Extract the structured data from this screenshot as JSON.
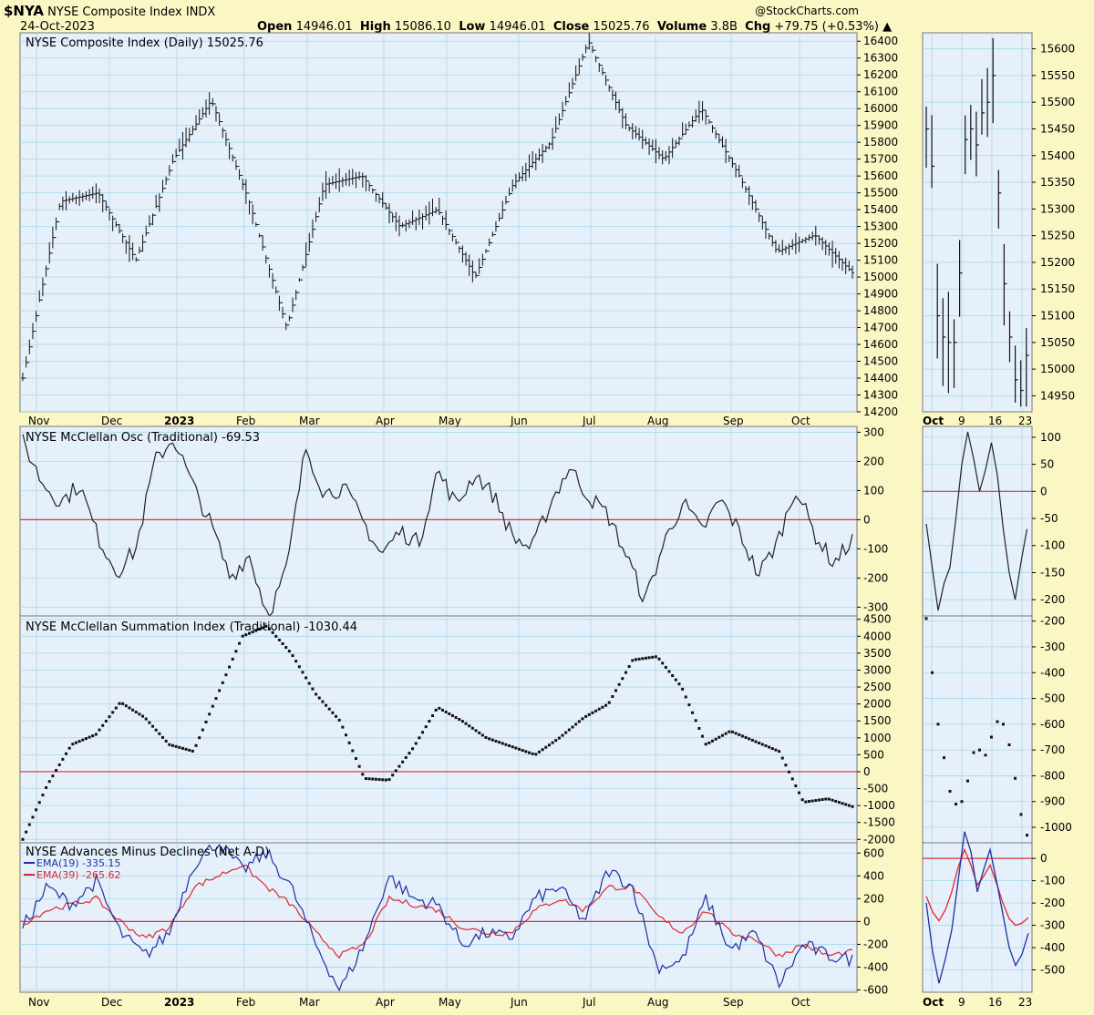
{
  "header": {
    "symbol": "$NYA",
    "name": "NYSE Composite Index INDX",
    "date": "24-Oct-2023",
    "credit": "@StockCharts.com",
    "open_label": "Open",
    "open": "14946.01",
    "high_label": "High",
    "high": "15086.10",
    "low_label": "Low",
    "low": "14946.01",
    "close_label": "Close",
    "close": "15025.76",
    "volume_label": "Volume",
    "volume": "3.8B",
    "chg_label": "Chg",
    "chg": "+79.75 (+0.53%)"
  },
  "colors": {
    "background": "#fbf7c4",
    "panel": "#e6f0fb",
    "grid": "#a9d8ea",
    "zero_line": "#d9303a",
    "ema19": "#1f2fa0",
    "ema39": "#e0282a"
  },
  "x_axis": {
    "main_labels": [
      "Nov",
      "Dec",
      "2023",
      "Feb",
      "Mar",
      "Apr",
      "May",
      "Jun",
      "Jul",
      "Aug",
      "Sep",
      "Oct"
    ],
    "side_labels": [
      "Oct",
      "9",
      "16",
      "23"
    ]
  },
  "chart_data": [
    {
      "type": "ohlc",
      "title": "NYSE Composite Index (Daily) 15025.76",
      "ylim": [
        14200,
        16450
      ],
      "yticks": [
        14200,
        14300,
        14400,
        14500,
        14600,
        14700,
        14800,
        14900,
        15000,
        15100,
        15200,
        15300,
        15400,
        15500,
        15600,
        15700,
        15800,
        15900,
        16000,
        16100,
        16200,
        16300,
        16400
      ],
      "anchors_x": [
        "Nov",
        "Dec",
        "Jan",
        "Feb",
        "Mar",
        "Apr",
        "May",
        "Jun",
        "Jul",
        "Aug",
        "Sep",
        "Oct",
        "Oct 24"
      ],
      "approx_close_path": [
        14400,
        15450,
        15500,
        15100,
        15700,
        16050,
        15450,
        14700,
        15550,
        15600,
        15300,
        15400,
        15000,
        15550,
        15800,
        16400,
        15900,
        15700,
        16000,
        15600,
        15150,
        15250,
        15025.76
      ],
      "side_ylim": [
        14920,
        15630
      ],
      "side_yticks": [
        14950,
        15000,
        15050,
        15100,
        15150,
        15200,
        15250,
        15300,
        15350,
        15400,
        15450,
        15500,
        15550,
        15600
      ]
    },
    {
      "type": "line",
      "title": "NYSE McClellan Osc (Traditional) -69.53",
      "ylim": [
        -330,
        320
      ],
      "yticks": [
        -300,
        -200,
        -100,
        0,
        100,
        200,
        300
      ],
      "approx_path": [
        270,
        130,
        60,
        120,
        -60,
        -180,
        -100,
        200,
        280,
        120,
        -20,
        -200,
        -120,
        -330,
        -170,
        250,
        90,
        110,
        0,
        -120,
        -40,
        -80,
        170,
        50,
        160,
        80,
        -60,
        -100,
        60,
        180,
        80,
        20,
        -120,
        -280,
        -80,
        60,
        -40,
        70,
        -40,
        -190,
        -80,
        110,
        -50,
        -150,
        -69.53
      ],
      "side_ylim": [
        -230,
        120
      ],
      "side_yticks": [
        -200,
        -150,
        -100,
        -50,
        0,
        50,
        100
      ]
    },
    {
      "type": "scatter",
      "title": "NYSE McClellan Summation Index (Traditional) -1030.44",
      "ylim": [
        -2100,
        4600
      ],
      "yticks": [
        -2000,
        -1500,
        -1000,
        -500,
        0,
        500,
        1000,
        1500,
        2000,
        2500,
        3000,
        3500,
        4000,
        4500
      ],
      "approx_path": [
        -2000,
        -400,
        800,
        1100,
        2050,
        1600,
        800,
        600,
        2300,
        4000,
        4300,
        3500,
        2300,
        1500,
        -200,
        -250,
        700,
        1900,
        1500,
        1000,
        750,
        500,
        1000,
        1600,
        2000,
        3300,
        3400,
        2500,
        800,
        1200,
        900,
        600,
        -900,
        -800,
        -1030.44
      ],
      "side_ylim": [
        -1060,
        -180
      ],
      "side_yticks": [
        -200,
        -300,
        -400,
        -500,
        -600,
        -700,
        -800,
        -900,
        -1000
      ]
    },
    {
      "type": "line",
      "title": "NYSE Advances Minus Declines (Net A-D)",
      "legend": [
        "EMA(19) -335.15",
        "EMA(39) -265.62"
      ],
      "ylim": [
        -620,
        690
      ],
      "yticks": [
        -600,
        -400,
        -200,
        0,
        200,
        400,
        600
      ],
      "series": [
        {
          "name": "EMA(19)",
          "approx_path": [
            -50,
            300,
            150,
            350,
            -100,
            -300,
            -100,
            500,
            700,
            450,
            600,
            300,
            -200,
            -600,
            -200,
            400,
            200,
            150,
            -200,
            -100,
            -150,
            200,
            300,
            0,
            450,
            300,
            -400,
            -350,
            200,
            -250,
            -100,
            -550,
            -200,
            -300,
            -335.15
          ]
        },
        {
          "name": "EMA(39)",
          "approx_path": [
            -20,
            100,
            150,
            200,
            0,
            -150,
            -50,
            300,
            400,
            500,
            300,
            150,
            -100,
            -300,
            -200,
            200,
            150,
            100,
            -50,
            -100,
            -100,
            100,
            200,
            100,
            300,
            300,
            50,
            -100,
            100,
            -100,
            -150,
            -300,
            -200,
            -300,
            -265.62
          ]
        }
      ],
      "side_ylim": [
        -600,
        70
      ],
      "side_yticks": [
        0,
        -100,
        -200,
        -300,
        -400,
        -500
      ]
    }
  ]
}
